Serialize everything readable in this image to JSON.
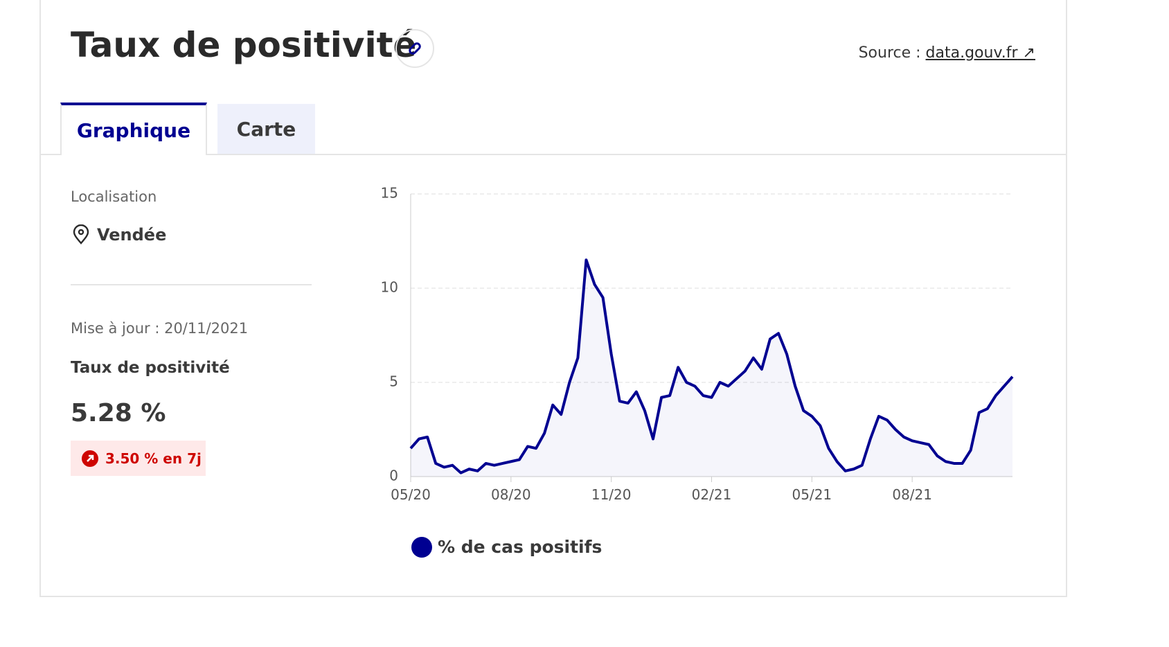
{
  "header": {
    "title": "Taux de positivité",
    "source_label": "Source :",
    "source_link": "data.gouv.fr"
  },
  "tabs": [
    "Graphique",
    "Carte"
  ],
  "sidebar": {
    "location_label": "Localisation",
    "location": "Vendée",
    "update": "Mise à jour : 20/11/2021",
    "indicator": "Taux de positivité",
    "value": "5.28 %",
    "change": "3.50 % en 7j"
  },
  "chart_data": {
    "type": "line",
    "x": [
      0,
      0.25,
      0.5,
      0.75,
      1,
      1.25,
      1.5,
      1.75,
      2,
      2.25,
      2.5,
      2.75,
      3,
      3.25,
      3.5,
      3.75,
      4,
      4.25,
      4.5,
      4.75,
      5,
      5.25,
      5.5,
      5.75,
      6,
      6.25,
      6.5,
      6.75,
      7,
      7.25,
      7.5,
      7.75,
      8,
      8.25,
      8.5,
      8.75,
      9,
      9.25,
      9.5,
      9.75,
      10,
      10.25,
      10.5,
      10.75,
      11,
      11.25,
      11.5,
      11.75,
      12,
      12.25,
      12.5,
      12.75,
      13,
      13.25,
      13.5,
      13.75,
      14,
      14.25,
      14.5,
      14.75,
      15,
      15.25,
      15.5,
      15.75,
      16,
      16.25,
      16.5,
      16.75,
      17,
      17.25,
      17.5,
      17.75,
      18
    ],
    "series": [
      {
        "name": "% de cas positifs",
        "color": "#000091",
        "values": [
          1.5,
          2.0,
          2.1,
          0.7,
          0.5,
          0.6,
          0.2,
          0.4,
          0.3,
          0.7,
          0.6,
          0.7,
          0.8,
          0.9,
          1.6,
          1.5,
          2.3,
          3.8,
          3.3,
          5.0,
          6.3,
          11.5,
          10.2,
          9.5,
          6.5,
          4.0,
          3.9,
          4.5,
          3.5,
          2.0,
          4.2,
          4.3,
          5.8,
          5.0,
          4.8,
          4.3,
          4.2,
          5.0,
          4.8,
          5.2,
          5.6,
          6.3,
          5.7,
          7.3,
          7.6,
          6.5,
          4.8,
          3.5,
          3.2,
          2.7,
          1.5,
          0.8,
          0.3,
          0.4,
          0.6,
          2.0,
          3.2,
          3.0,
          2.5,
          2.1,
          1.9,
          1.8,
          1.7,
          1.1,
          0.8,
          0.7,
          0.7,
          1.4,
          3.4,
          3.6,
          4.3,
          4.8,
          5.3
        ]
      }
    ],
    "xlim": [
      0,
      18
    ],
    "xticks": [
      {
        "value": 0,
        "label": "05/20"
      },
      {
        "value": 3,
        "label": "08/20"
      },
      {
        "value": 6,
        "label": "11/20"
      },
      {
        "value": 9,
        "label": "02/21"
      },
      {
        "value": 12,
        "label": "05/21"
      },
      {
        "value": 15,
        "label": "08/21"
      }
    ],
    "ylim": [
      0,
      15
    ],
    "yticks": [
      0,
      5,
      10,
      15
    ],
    "grid": true
  }
}
